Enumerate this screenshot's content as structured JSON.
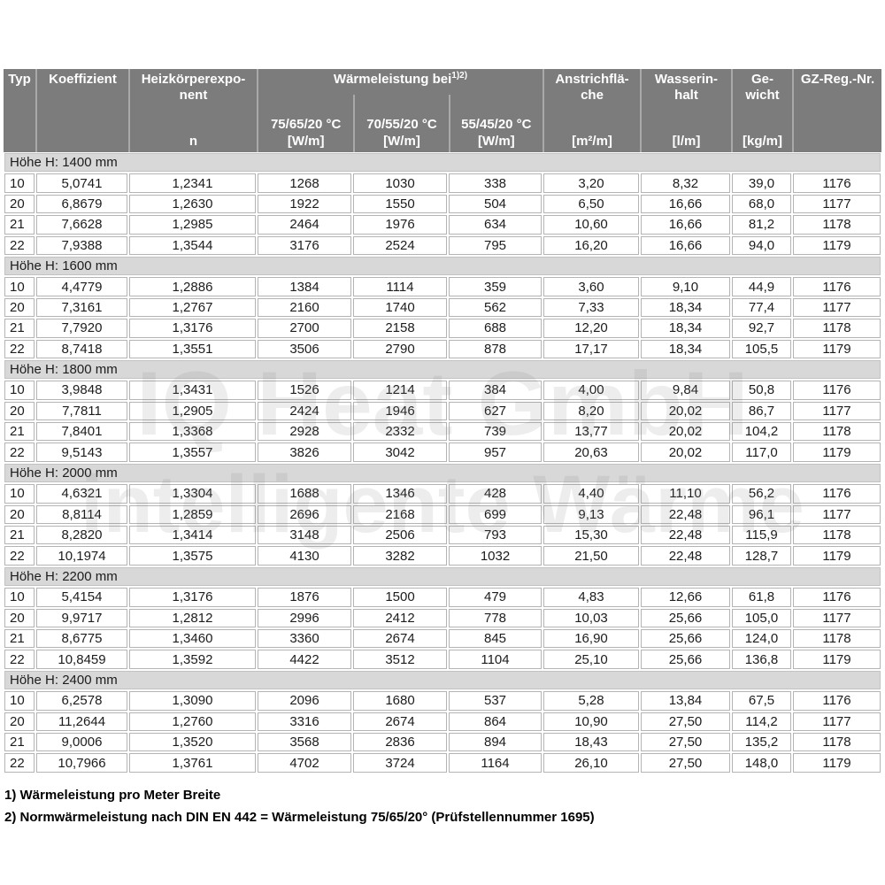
{
  "colors": {
    "header_bg": "#7c7c7c",
    "header_text": "#ffffff",
    "section_bg": "#d8d8d8",
    "cell_border": "#b4b4b4",
    "body_text": "#1c1c1c"
  },
  "header": {
    "typ": "Typ",
    "koeffizient": "Koeffizient",
    "exponent_line1": "Heizkörperexpo-",
    "exponent_line2": "nent",
    "exponent_symbol": "n",
    "waermeleistung": "Wärmeleistung bei",
    "waermeleistung_sup": "1)2)",
    "sub": [
      {
        "temp": "75/65/20 °C",
        "unit": "[W/m]"
      },
      {
        "temp": "70/55/20 °C",
        "unit": "[W/m]"
      },
      {
        "temp": "55/45/20 °C",
        "unit": "[W/m]"
      }
    ],
    "anstrich_line1": "Anstrichflä-",
    "anstrich_line2": "che",
    "anstrich_unit": "[m²/m]",
    "wasser_line1": "Wasserin-",
    "wasser_line2": "halt",
    "wasser_unit": "[l/m]",
    "gewicht_line1": "Ge-",
    "gewicht_line2": "wicht",
    "gewicht_unit": "[kg/m]",
    "gz": "GZ-Reg.-Nr."
  },
  "sections": [
    {
      "title": "Höhe H: 1400 mm",
      "rows": [
        [
          "10",
          "5,0741",
          "1,2341",
          "1268",
          "1030",
          "338",
          "3,20",
          "8,32",
          "39,0",
          "1176"
        ],
        [
          "20",
          "6,8679",
          "1,2630",
          "1922",
          "1550",
          "504",
          "6,50",
          "16,66",
          "68,0",
          "1177"
        ],
        [
          "21",
          "7,6628",
          "1,2985",
          "2464",
          "1976",
          "634",
          "10,60",
          "16,66",
          "81,2",
          "1178"
        ],
        [
          "22",
          "7,9388",
          "1,3544",
          "3176",
          "2524",
          "795",
          "16,20",
          "16,66",
          "94,0",
          "1179"
        ]
      ]
    },
    {
      "title": "Höhe H: 1600 mm",
      "rows": [
        [
          "10",
          "4,4779",
          "1,2886",
          "1384",
          "1114",
          "359",
          "3,60",
          "9,10",
          "44,9",
          "1176"
        ],
        [
          "20",
          "7,3161",
          "1,2767",
          "2160",
          "1740",
          "562",
          "7,33",
          "18,34",
          "77,4",
          "1177"
        ],
        [
          "21",
          "7,7920",
          "1,3176",
          "2700",
          "2158",
          "688",
          "12,20",
          "18,34",
          "92,7",
          "1178"
        ],
        [
          "22",
          "8,7418",
          "1,3551",
          "3506",
          "2790",
          "878",
          "17,17",
          "18,34",
          "105,5",
          "1179"
        ]
      ]
    },
    {
      "title": "Höhe H: 1800 mm",
      "rows": [
        [
          "10",
          "3,9848",
          "1,3431",
          "1526",
          "1214",
          "384",
          "4,00",
          "9,84",
          "50,8",
          "1176"
        ],
        [
          "20",
          "7,7811",
          "1,2905",
          "2424",
          "1946",
          "627",
          "8,20",
          "20,02",
          "86,7",
          "1177"
        ],
        [
          "21",
          "7,8401",
          "1,3368",
          "2928",
          "2332",
          "739",
          "13,77",
          "20,02",
          "104,2",
          "1178"
        ],
        [
          "22",
          "9,5143",
          "1,3557",
          "3826",
          "3042",
          "957",
          "20,63",
          "20,02",
          "117,0",
          "1179"
        ]
      ]
    },
    {
      "title": "Höhe H: 2000 mm",
      "rows": [
        [
          "10",
          "4,6321",
          "1,3304",
          "1688",
          "1346",
          "428",
          "4,40",
          "11,10",
          "56,2",
          "1176"
        ],
        [
          "20",
          "8,8114",
          "1,2859",
          "2696",
          "2168",
          "699",
          "9,13",
          "22,48",
          "96,1",
          "1177"
        ],
        [
          "21",
          "8,2820",
          "1,3414",
          "3148",
          "2506",
          "793",
          "15,30",
          "22,48",
          "115,9",
          "1178"
        ],
        [
          "22",
          "10,1974",
          "1,3575",
          "4130",
          "3282",
          "1032",
          "21,50",
          "22,48",
          "128,7",
          "1179"
        ]
      ]
    },
    {
      "title": "Höhe H: 2200 mm",
      "rows": [
        [
          "10",
          "5,4154",
          "1,3176",
          "1876",
          "1500",
          "479",
          "4,83",
          "12,66",
          "61,8",
          "1176"
        ],
        [
          "20",
          "9,9717",
          "1,2812",
          "2996",
          "2412",
          "778",
          "10,03",
          "25,66",
          "105,0",
          "1177"
        ],
        [
          "21",
          "8,6775",
          "1,3460",
          "3360",
          "2674",
          "845",
          "16,90",
          "25,66",
          "124,0",
          "1178"
        ],
        [
          "22",
          "10,8459",
          "1,3592",
          "4422",
          "3512",
          "1104",
          "25,10",
          "25,66",
          "136,8",
          "1179"
        ]
      ]
    },
    {
      "title": "Höhe H: 2400 mm",
      "rows": [
        [
          "10",
          "6,2578",
          "1,3090",
          "2096",
          "1680",
          "537",
          "5,28",
          "13,84",
          "67,5",
          "1176"
        ],
        [
          "20",
          "11,2644",
          "1,2760",
          "3316",
          "2674",
          "864",
          "10,90",
          "27,50",
          "114,2",
          "1177"
        ],
        [
          "21",
          "9,0006",
          "1,3520",
          "3568",
          "2836",
          "894",
          "18,43",
          "27,50",
          "135,2",
          "1178"
        ],
        [
          "22",
          "10,7966",
          "1,3761",
          "4702",
          "3724",
          "1164",
          "26,10",
          "27,50",
          "148,0",
          "1179"
        ]
      ]
    }
  ],
  "footnotes": [
    "1) Wärmeleistung pro Meter Breite",
    "2) Normwärmeleistung nach DIN EN 442 = Wärmeleistung 75/65/20° (Prüfstellennummer 1695)"
  ],
  "watermark": {
    "line1": "IQ Heat GmbH",
    "line2": "intelligente Wärme"
  }
}
